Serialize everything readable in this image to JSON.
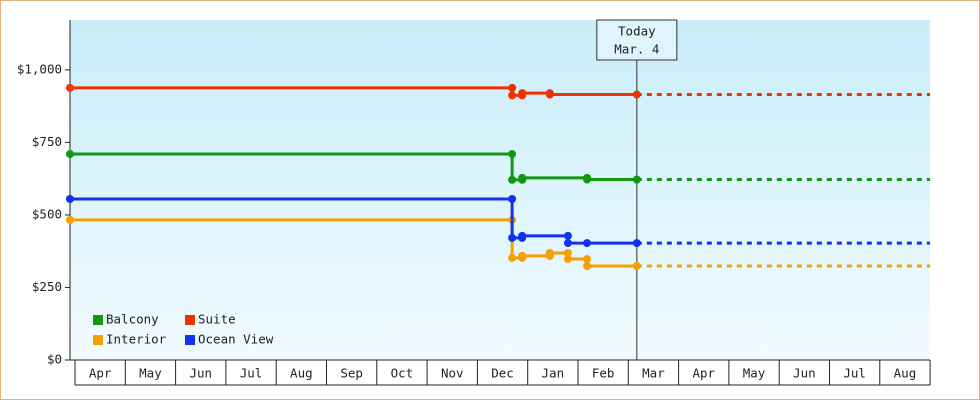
{
  "chart_data": {
    "type": "step-line",
    "ylim": [
      0,
      1172
    ],
    "yticks": [
      {
        "value": 0,
        "label": "$0"
      },
      {
        "value": 250,
        "label": "$250"
      },
      {
        "value": 500,
        "label": "$500"
      },
      {
        "value": 750,
        "label": "$750"
      },
      {
        "value": 1000,
        "label": "$1,000"
      }
    ],
    "xlim": [
      -0.1,
      17
    ],
    "xticks": [
      {
        "value": 0.5,
        "label": "Apr"
      },
      {
        "value": 1.5,
        "label": "May"
      },
      {
        "value": 2.5,
        "label": "Jun"
      },
      {
        "value": 3.5,
        "label": "Jul"
      },
      {
        "value": 4.5,
        "label": "Aug"
      },
      {
        "value": 5.5,
        "label": "Sep"
      },
      {
        "value": 6.5,
        "label": "Oct"
      },
      {
        "value": 7.5,
        "label": "Nov"
      },
      {
        "value": 8.5,
        "label": "Dec"
      },
      {
        "value": 9.5,
        "label": "Jan"
      },
      {
        "value": 10.5,
        "label": "Feb"
      },
      {
        "value": 11.5,
        "label": "Mar"
      },
      {
        "value": 12.5,
        "label": "Apr"
      },
      {
        "value": 13.5,
        "label": "May"
      },
      {
        "value": 14.5,
        "label": "Jun"
      },
      {
        "value": 15.5,
        "label": "Jul"
      },
      {
        "value": 16.5,
        "label": "Aug"
      }
    ],
    "today": {
      "x": 11.17,
      "label": "Today",
      "date": "Mar. 4"
    },
    "series": [
      {
        "name": "Balcony",
        "color": "#119911",
        "x": [
          -0.1,
          8.69,
          8.69,
          8.89,
          8.89,
          10.18,
          10.18,
          11.17
        ],
        "values": [
          710,
          710,
          621,
          621,
          628,
          628,
          622,
          622
        ]
      },
      {
        "name": "Suite",
        "color": "#ee3300",
        "x": [
          -0.1,
          8.69,
          8.69,
          8.89,
          8.89,
          9.44,
          9.44,
          11.17
        ],
        "values": [
          938,
          938,
          912,
          912,
          920,
          920,
          915,
          915
        ]
      },
      {
        "name": "Interior",
        "color": "#f5a000",
        "x": [
          -0.1,
          8.69,
          8.69,
          8.89,
          8.89,
          9.44,
          9.44,
          9.8,
          9.8,
          10.18,
          10.18,
          11.17
        ],
        "values": [
          483,
          483,
          352,
          352,
          359,
          359,
          369,
          369,
          348,
          348,
          324,
          324
        ]
      },
      {
        "name": "Ocean View",
        "color": "#1133ee",
        "x": [
          -0.1,
          8.69,
          8.69,
          8.89,
          8.89,
          9.8,
          9.8,
          10.18,
          11.17
        ],
        "values": [
          555,
          555,
          421,
          421,
          428,
          428,
          403,
          403,
          403
        ]
      }
    ]
  }
}
